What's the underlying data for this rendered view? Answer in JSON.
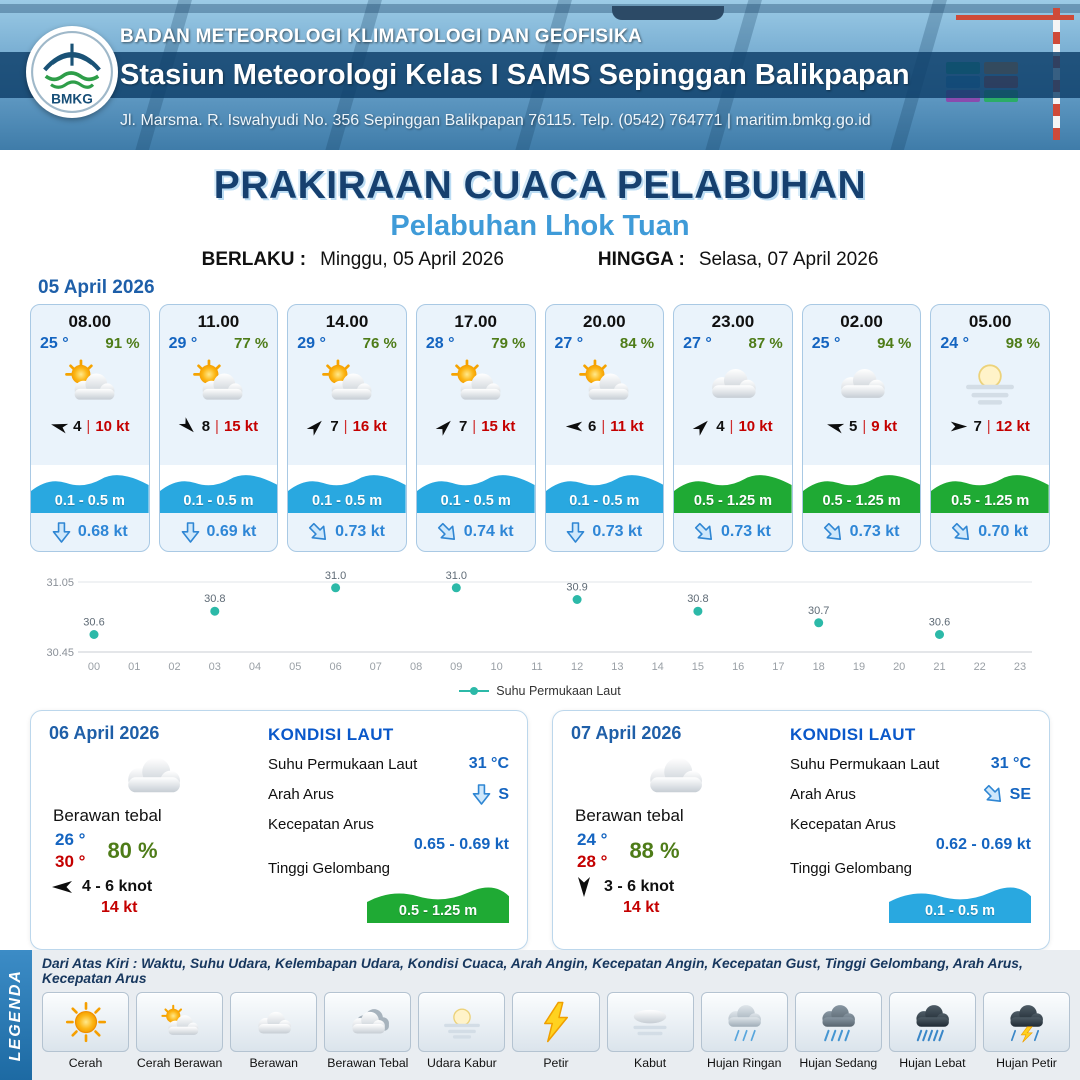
{
  "header": {
    "logo_text": "BMKG",
    "agency": "BADAN METEOROLOGI KLIMATOLOGI DAN GEOFISIKA",
    "station": "Stasiun Meteorologi Kelas I SAMS Sepinggan Balikpapan",
    "address": "Jl. Marsma. R. Iswahyudi No. 356 Sepinggan Balikpapan 76115. Telp. (0542) 764771 | maritim.bmkg.go.id"
  },
  "title": {
    "main": "PRAKIRAAN CUACA PELABUHAN",
    "subtitle": "Pelabuhan Lhok Tuan",
    "valid_from_label": "BERLAKU :",
    "valid_from": "Minggu, 05 April 2026",
    "valid_to_label": "HINGGA :",
    "valid_to": "Selasa, 07 April 2026"
  },
  "forecast": {
    "date": "05 April 2026",
    "wind_sep": "|",
    "cards": [
      {
        "time": "08.00",
        "temp": "25 °",
        "humidity": "91 %",
        "icon": "sun-cloud",
        "wind_speed": "4",
        "gust": "10 kt",
        "wind_rot": 195,
        "wave": "0.1 - 0.5 m",
        "wave_level": "low",
        "current": "0.68 kt",
        "current_rot": 0
      },
      {
        "time": "11.00",
        "temp": "29 °",
        "humidity": "77 %",
        "icon": "sun-cloud",
        "wind_speed": "8",
        "gust": "15 kt",
        "wind_rot": 45,
        "wave": "0.1 - 0.5 m",
        "wave_level": "low",
        "current": "0.69 kt",
        "current_rot": 0
      },
      {
        "time": "14.00",
        "temp": "29 °",
        "humidity": "76 %",
        "icon": "sun-cloud",
        "wind_speed": "7",
        "gust": "16 kt",
        "wind_rot": -45,
        "wave": "0.1 - 0.5 m",
        "wave_level": "low",
        "current": "0.73 kt",
        "current_rot": -45
      },
      {
        "time": "17.00",
        "temp": "28 °",
        "humidity": "79 %",
        "icon": "sun-cloud",
        "wind_speed": "7",
        "gust": "15 kt",
        "wind_rot": -45,
        "wave": "0.1 - 0.5 m",
        "wave_level": "low",
        "current": "0.74 kt",
        "current_rot": -45
      },
      {
        "time": "20.00",
        "temp": "27 °",
        "humidity": "84 %",
        "icon": "sun-cloud",
        "wind_speed": "6",
        "gust": "11 kt",
        "wind_rot": 180,
        "wave": "0.1 - 0.5 m",
        "wave_level": "low",
        "current": "0.73 kt",
        "current_rot": 0
      },
      {
        "time": "23.00",
        "temp": "27 °",
        "humidity": "87 %",
        "icon": "cloud",
        "wind_speed": "4",
        "gust": "10 kt",
        "wind_rot": -45,
        "wave": "0.5 - 1.25 m",
        "wave_level": "mid",
        "current": "0.73 kt",
        "current_rot": -45
      },
      {
        "time": "02.00",
        "temp": "25 °",
        "humidity": "94 %",
        "icon": "cloud",
        "wind_speed": "5",
        "gust": "9 kt",
        "wind_rot": 195,
        "wave": "0.5 - 1.25 m",
        "wave_level": "mid",
        "current": "0.73 kt",
        "current_rot": -45
      },
      {
        "time": "05.00",
        "temp": "24 °",
        "humidity": "98 %",
        "icon": "hazy-sun",
        "wind_speed": "7",
        "gust": "12 kt",
        "wind_rot": 0,
        "wave": "0.5 - 1.25 m",
        "wave_level": "mid",
        "current": "0.70 kt",
        "current_rot": -45
      }
    ]
  },
  "chart_data": {
    "type": "scatter",
    "series_name": "Suhu Permukaan Laut",
    "x": [
      0,
      3,
      6,
      9,
      12,
      15,
      18,
      21
    ],
    "values": [
      30.6,
      30.8,
      31.0,
      31.0,
      30.9,
      30.8,
      30.7,
      30.6
    ],
    "x_ticks": [
      "00",
      "01",
      "02",
      "03",
      "04",
      "05",
      "06",
      "07",
      "08",
      "09",
      "10",
      "11",
      "12",
      "13",
      "14",
      "15",
      "16",
      "17",
      "18",
      "19",
      "20",
      "21",
      "22",
      "23"
    ],
    "ylim": [
      30.45,
      31.05
    ],
    "y_tick_labels": [
      "31.05",
      "30.45"
    ],
    "point_color": "#2cb9a8",
    "grid": "minimal",
    "legend_position": "bottom"
  },
  "daily": [
    {
      "date": "06 April 2026",
      "icon": "cloud",
      "condition": "Berawan tebal",
      "temp_min": "26 °",
      "temp_max": "30 °",
      "humidity": "80 %",
      "wind_rot": 180,
      "wind_range": "4 - 6 knot",
      "gust": "14 kt",
      "sea": {
        "heading": "KONDISI LAUT",
        "sst_label": "Suhu Permukaan Laut",
        "sst": "31 °C",
        "current_dir_label": "Arah Arus",
        "current_dir": "S",
        "current_rot": 0,
        "current_speed_label": "Kecepatan Arus",
        "current_speed": "0.65 - 0.69 kt",
        "wave_label": "Tinggi Gelombang",
        "wave": "0.5 - 1.25 m",
        "wave_level": "mid"
      }
    },
    {
      "date": "07 April 2026",
      "icon": "cloud",
      "condition": "Berawan tebal",
      "temp_min": "24 °",
      "temp_max": "28 °",
      "humidity": "88 %",
      "wind_rot": 90,
      "wind_range": "3 - 6 knot",
      "gust": "14 kt",
      "sea": {
        "heading": "KONDISI LAUT",
        "sst_label": "Suhu Permukaan Laut",
        "sst": "31 °C",
        "current_dir_label": "Arah Arus",
        "current_dir": "SE",
        "current_rot": -45,
        "current_speed_label": "Kecepatan Arus",
        "current_speed": "0.62 - 0.69 kt",
        "wave_label": "Tinggi Gelombang",
        "wave": "0.1 - 0.5 m",
        "wave_level": "low"
      }
    }
  ],
  "legend": {
    "sidebar": "LEGENDA",
    "description": "Dari Atas Kiri : Waktu, Suhu Udara, Kelembapan Udara, Kondisi Cuaca, Arah Angin, Kecepatan Angin, Kecepatan Gust, Tinggi Gelombang, Arah Arus, Kecepatan Arus",
    "items": [
      {
        "label": "Cerah",
        "icon": "sun"
      },
      {
        "label": "Cerah Berawan",
        "icon": "sun-cloud"
      },
      {
        "label": "Berawan",
        "icon": "cloud"
      },
      {
        "label": "Berawan Tebal",
        "icon": "cloud-thick"
      },
      {
        "label": "Udara Kabur",
        "icon": "hazy-sun"
      },
      {
        "label": "Petir",
        "icon": "lightning"
      },
      {
        "label": "Kabut",
        "icon": "fog"
      },
      {
        "label": "Hujan Ringan",
        "icon": "rain-light"
      },
      {
        "label": "Hujan Sedang",
        "icon": "rain-medium"
      },
      {
        "label": "Hujan Lebat",
        "icon": "rain-heavy"
      },
      {
        "label": "Hujan Petir",
        "icon": "rain-thunder"
      }
    ]
  },
  "colors": {
    "accent_blue": "#1f6fb5",
    "wave_low": "#29a8e0",
    "wave_mid": "#1faa34",
    "temp_blue": "#1464c0",
    "humidity_green": "#4e7c18",
    "gust_red": "#c40000",
    "sst_point": "#2cb9a8"
  }
}
